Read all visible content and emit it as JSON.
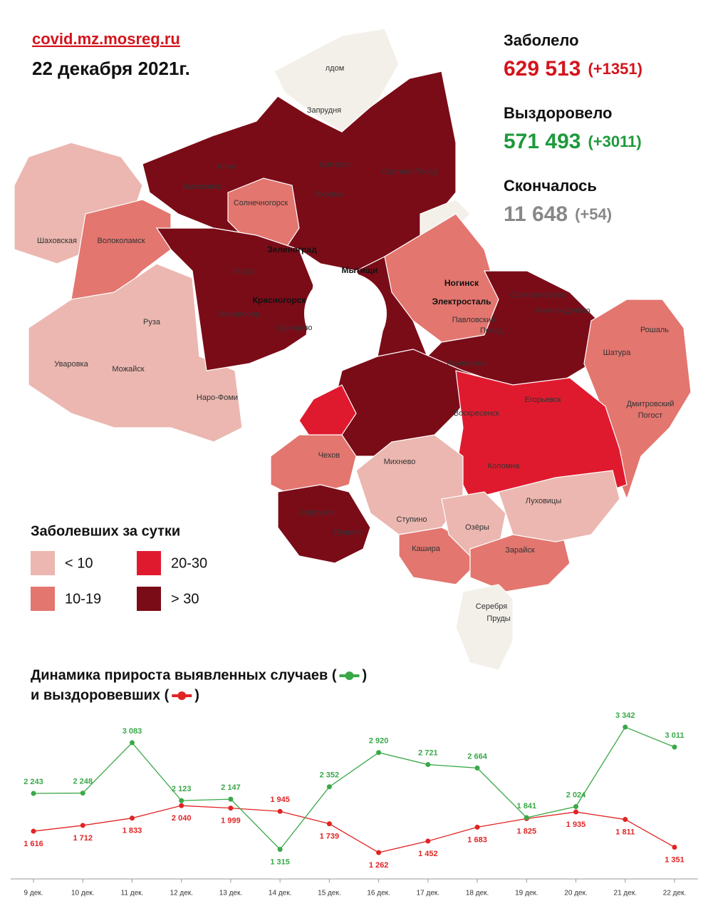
{
  "header": {
    "site": "covid.mz.mosreg.ru",
    "date": "22 декабря 2021г."
  },
  "stats": [
    {
      "label": "Заболело",
      "value": "629 513",
      "delta": "(+1351)",
      "color": "#d4141c"
    },
    {
      "label": "Выздоровело",
      "value": "571 493",
      "delta": "(+3011)",
      "color": "#1e9a3c"
    },
    {
      "label": "Скончалось",
      "value": "11 648",
      "delta": "(+54)",
      "color": "#888888"
    }
  ],
  "map": {
    "labels": [
      "лдом",
      "Запрудня",
      "Клин",
      "Дмитров",
      "Сергиев Посад",
      "Высоковск",
      "Яхрома",
      "Солнечногорск",
      "Шаховская",
      "Волоколамск",
      "Зеленоград",
      "Истра",
      "Мытищи",
      "Ногинск",
      "Электросталь",
      "Красногорск",
      "Звенигород",
      "Одинцово",
      "Павловский",
      "Посад",
      "Орехово-Зуево",
      "Ликино-Дулёво",
      "Рошаль",
      "Шатура",
      "Руза",
      "Уваровка",
      "Можайск",
      "Наро-Фоми",
      "Раменское",
      "Воскресенск",
      "Егорьевск",
      "Дмитровский",
      "Погост",
      "Чехов",
      "Михнево",
      "Коломна",
      "Серпухов",
      "Пущино",
      "Ступино",
      "Озёры",
      "Луховицы",
      "Кашира",
      "Зарайск",
      "Серебря",
      "Пруды"
    ]
  },
  "legend": {
    "title": "Заболевших за сутки",
    "items": [
      {
        "label": "< 10",
        "color": "#ebb7b0"
      },
      {
        "label": "10-19",
        "color": "#e3766f"
      },
      {
        "label": "20-30",
        "color": "#e01a2e"
      },
      {
        "label": "> 30",
        "color": "#7a0c18"
      }
    ]
  },
  "chart_data": {
    "type": "line",
    "title_lines": [
      "Динамика прироста выявленных случаев (",
      "и выздоровевших ("
    ],
    "title_close": ")",
    "categories": [
      "9 дек.",
      "10 дек.",
      "11 дек.",
      "12 дек.",
      "13 дек.",
      "14 дек.",
      "15 дек.",
      "16 дек.",
      "17 дек.",
      "18 дек.",
      "19 дек.",
      "20 дек.",
      "21 дек.",
      "22 дек."
    ],
    "series": [
      {
        "color": "#e02424",
        "values": [
          1616,
          1712,
          1833,
          2040,
          1999,
          1945,
          1739,
          1262,
          1452,
          1683,
          1825,
          1935,
          1811,
          1351
        ],
        "value_labels": [
          "1 616",
          "1 712",
          "1 833",
          "2 040",
          "1 999",
          "1 945",
          "1 739",
          "1 262",
          "1 452",
          "1 683",
          "1 825",
          "1 935",
          "1 811",
          "1 351"
        ]
      },
      {
        "color": "#3aa848",
        "values": [
          2243,
          2248,
          3083,
          2123,
          2147,
          1315,
          2352,
          2920,
          2721,
          2664,
          1841,
          2024,
          3342,
          3011
        ],
        "value_labels": [
          "2 243",
          "2 248",
          "3 083",
          "2 123",
          "2 147",
          "1 315",
          "2 352",
          "2 920",
          "2 721",
          "2 664",
          "1 841",
          "2 024",
          "3 342",
          "3 011"
        ]
      }
    ]
  }
}
